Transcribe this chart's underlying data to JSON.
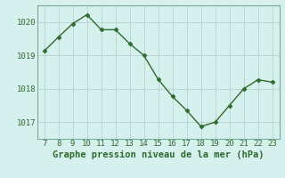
{
  "x": [
    7,
    8,
    9,
    10,
    11,
    12,
    13,
    14,
    15,
    16,
    17,
    18,
    19,
    20,
    21,
    22,
    23
  ],
  "y": [
    1019.13,
    1019.55,
    1019.95,
    1020.22,
    1019.77,
    1019.77,
    1019.35,
    1019.0,
    1018.28,
    1017.77,
    1017.35,
    1016.87,
    1017.0,
    1017.5,
    1018.0,
    1018.27,
    1018.2
  ],
  "line_color": "#2d6a2d",
  "marker": "D",
  "marker_size": 2.5,
  "bg_color": "#d6f0ee",
  "grid_color": "#b0ccc8",
  "xlabel": "Graphe pression niveau de la mer (hPa)",
  "xlabel_color": "#2d6a2d",
  "xlabel_fontsize": 7.5,
  "tick_color": "#2d6a2d",
  "tick_fontsize": 6.5,
  "ylim": [
    1016.5,
    1020.5
  ],
  "yticks": [
    1017,
    1018,
    1019,
    1020
  ],
  "xticks": [
    7,
    8,
    9,
    10,
    11,
    12,
    13,
    14,
    15,
    16,
    17,
    18,
    19,
    20,
    21,
    22,
    23
  ],
  "spine_color": "#7aaa99",
  "linewidth": 1.0
}
